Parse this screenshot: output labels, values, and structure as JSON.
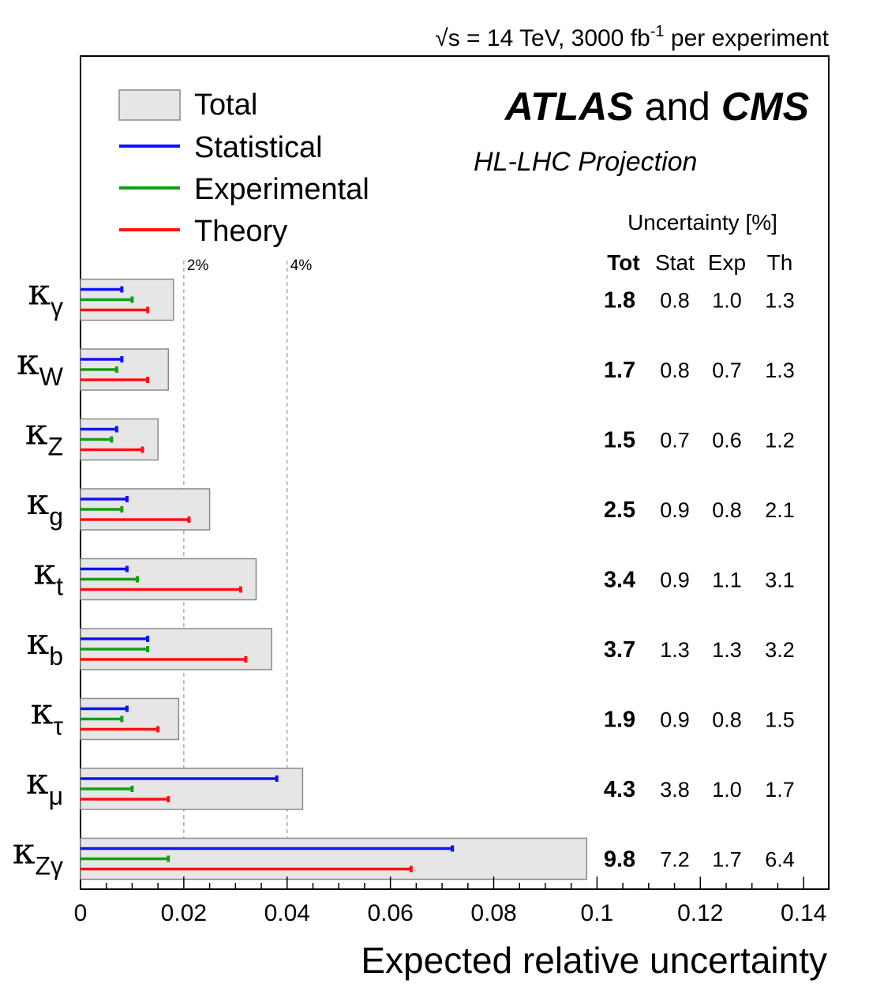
{
  "header": {
    "sqrt_symbol": "√",
    "sqrt_var": "s",
    "energy_text": " = 14 TeV, 3000 fb",
    "lumi_exponent": "-1",
    "per_experiment": " per experiment"
  },
  "branding": {
    "atlas": "ATLAS",
    "and": " and ",
    "cms": "CMS",
    "projection": "HL-LHC Projection"
  },
  "colors": {
    "total_fill": "#e6e6e6",
    "total_stroke": "#8a8a8a",
    "statistical": "#1010ff",
    "experimental": "#10a010",
    "theory": "#ff1010",
    "reference_line": "#a0a0a0"
  },
  "legend": {
    "position": "top-left",
    "total": "Total",
    "statistical": "Statistical",
    "experimental": "Experimental",
    "theory": "Theory"
  },
  "table": {
    "title": "Uncertainty [%]",
    "headers": [
      "Tot",
      "Stat",
      "Exp",
      "Th"
    ]
  },
  "chart_data": {
    "type": "bar",
    "orientation": "horizontal",
    "xlabel": "Expected relative uncertainty",
    "xlim": [
      0,
      0.145
    ],
    "x_ticks": [
      0,
      0.02,
      0.04,
      0.06,
      0.08,
      0.1,
      0.12,
      0.14
    ],
    "x_tick_labels": [
      "0",
      "0.02",
      "0.04",
      "0.06",
      "0.08",
      "0.1",
      "0.12",
      "0.14"
    ],
    "reference_lines": [
      {
        "x": 0.02,
        "label": "2%"
      },
      {
        "x": 0.04,
        "label": "4%"
      }
    ],
    "categories": [
      {
        "symbol": "κ",
        "subscript": "γ"
      },
      {
        "symbol": "κ",
        "subscript": "W"
      },
      {
        "symbol": "κ",
        "subscript": "Z"
      },
      {
        "symbol": "κ",
        "subscript": "g"
      },
      {
        "symbol": "κ",
        "subscript": "t"
      },
      {
        "symbol": "κ",
        "subscript": "b"
      },
      {
        "symbol": "κ",
        "subscript": "τ"
      },
      {
        "symbol": "κ",
        "subscript": "μ"
      },
      {
        "symbol": "κ",
        "subscript": "Zγ"
      }
    ],
    "series": [
      {
        "name": "Total",
        "values": [
          0.018,
          0.017,
          0.015,
          0.025,
          0.034,
          0.037,
          0.019,
          0.043,
          0.098
        ]
      },
      {
        "name": "Statistical",
        "values": [
          0.008,
          0.008,
          0.007,
          0.009,
          0.009,
          0.013,
          0.009,
          0.038,
          0.072
        ]
      },
      {
        "name": "Experimental",
        "values": [
          0.01,
          0.007,
          0.006,
          0.008,
          0.011,
          0.013,
          0.008,
          0.01,
          0.017
        ]
      },
      {
        "name": "Theory",
        "values": [
          0.013,
          0.013,
          0.012,
          0.021,
          0.031,
          0.032,
          0.015,
          0.017,
          0.064
        ]
      }
    ],
    "table_values": [
      [
        "1.8",
        "0.8",
        "1.0",
        "1.3"
      ],
      [
        "1.7",
        "0.8",
        "0.7",
        "1.3"
      ],
      [
        "1.5",
        "0.7",
        "0.6",
        "1.2"
      ],
      [
        "2.5",
        "0.9",
        "0.8",
        "2.1"
      ],
      [
        "3.4",
        "0.9",
        "1.1",
        "3.1"
      ],
      [
        "3.7",
        "1.3",
        "1.3",
        "3.2"
      ],
      [
        "1.9",
        "0.9",
        "0.8",
        "1.5"
      ],
      [
        "4.3",
        "3.8",
        "1.0",
        "1.7"
      ],
      [
        "9.8",
        "7.2",
        "1.7",
        "6.4"
      ]
    ]
  }
}
